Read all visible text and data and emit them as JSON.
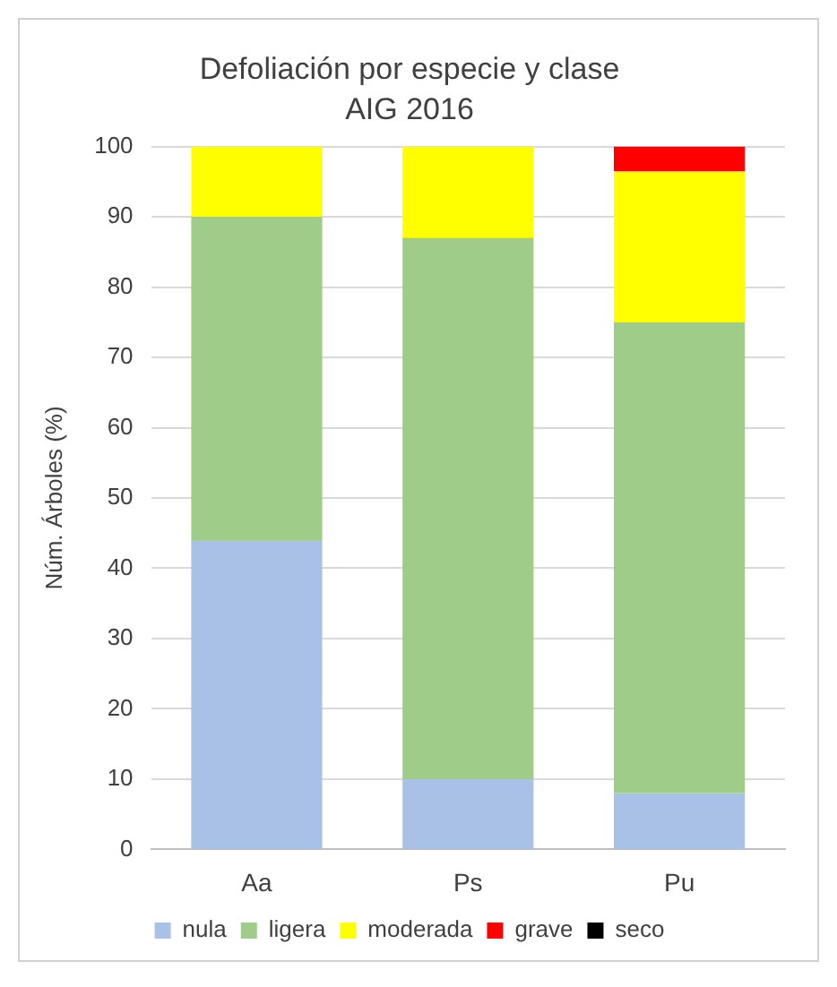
{
  "chart_data": {
    "type": "bar",
    "title": "Defoliación por especie y clase",
    "subtitle": "AIG 2016",
    "ylabel": "Núm. Árboles (%)",
    "categories": [
      "Aa",
      "Ps",
      "Pu"
    ],
    "stacked": true,
    "series": [
      {
        "name": "nula",
        "color": "#a9c1e6",
        "values": [
          44,
          10,
          8
        ]
      },
      {
        "name": "ligera",
        "color": "#9fcc88",
        "values": [
          46,
          77,
          67
        ]
      },
      {
        "name": "moderada",
        "color": "#ffff00",
        "values": [
          10,
          13,
          21.5
        ]
      },
      {
        "name": "grave",
        "color": "#ff0000",
        "values": [
          0,
          0,
          3.5
        ]
      },
      {
        "name": "seco",
        "color": "#000000",
        "values": [
          0,
          0,
          0
        ]
      }
    ],
    "ylim": [
      0,
      100
    ],
    "yticks": [
      0,
      10,
      20,
      30,
      40,
      50,
      60,
      70,
      80,
      90,
      100
    ],
    "grid": "y",
    "legend": "bottom"
  }
}
